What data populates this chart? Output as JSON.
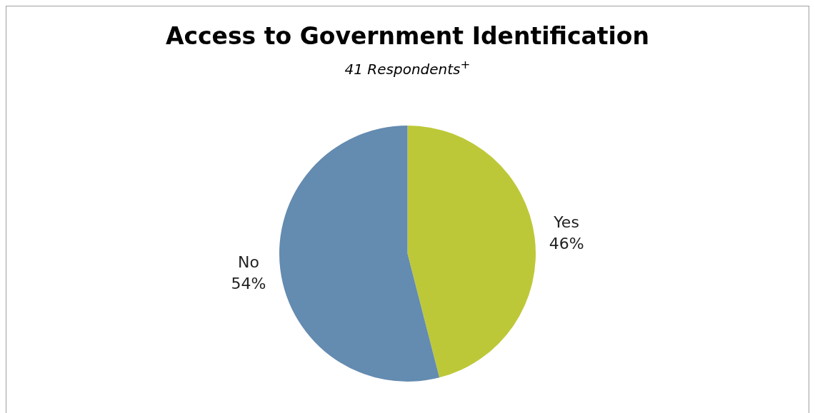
{
  "chart_data": {
    "type": "pie",
    "title": "Access to Government Identification",
    "subtitle": "41 Respondents$^{+}$",
    "categories": [
      "Yes",
      "No"
    ],
    "values": [
      46,
      54
    ],
    "value_labels": [
      "46%",
      "54%"
    ],
    "colors": [
      "#bdc838",
      "#648bb0"
    ],
    "legend": false
  }
}
